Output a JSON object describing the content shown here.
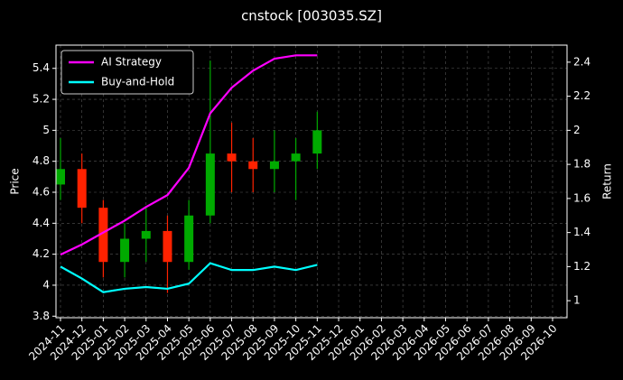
{
  "chart_data": {
    "type": "candlestick",
    "title": "cnstock [003035.SZ]",
    "ylabel": "Price",
    "y2label": "Return",
    "x": [
      "2024-11",
      "2024-12",
      "2025-01",
      "2025-02",
      "2025-03",
      "2025-04",
      "2025-05",
      "2025-06",
      "2025-07",
      "2025-08",
      "2025-09",
      "2025-10",
      "2025-11"
    ],
    "open": [
      4.65,
      4.75,
      4.5,
      4.15,
      4.3,
      4.35,
      4.15,
      4.45,
      4.85,
      4.8,
      4.75,
      4.8,
      4.85
    ],
    "high": [
      4.95,
      4.85,
      4.55,
      4.4,
      4.5,
      4.45,
      4.55,
      5.45,
      5.05,
      4.95,
      5.0,
      4.95,
      5.12
    ],
    "low": [
      4.55,
      4.4,
      4.05,
      4.05,
      4.15,
      3.95,
      4.1,
      4.4,
      4.6,
      4.6,
      4.6,
      4.55,
      4.75
    ],
    "close": [
      4.75,
      4.5,
      4.15,
      4.3,
      4.35,
      4.15,
      4.45,
      4.85,
      4.8,
      4.75,
      4.8,
      4.85,
      5.0
    ],
    "up_color": "#00aa00",
    "down_color": "#ff2200",
    "series": [
      {
        "name": "AI Strategy",
        "color": "#ff00ff",
        "axis": "y2",
        "values": [
          1.27,
          1.33,
          1.4,
          1.47,
          1.55,
          1.62,
          1.78,
          2.1,
          2.25,
          2.35,
          2.42,
          2.44,
          2.44
        ]
      },
      {
        "name": "Buy-and-Hold",
        "color": "#00ffff",
        "axis": "y2",
        "values": [
          1.2,
          1.13,
          1.05,
          1.07,
          1.08,
          1.07,
          1.1,
          1.22,
          1.18,
          1.18,
          1.2,
          1.18,
          1.21
        ]
      }
    ],
    "xlim": [
      "2024-11",
      "2026-10"
    ],
    "xticks": [
      "2024-11",
      "2024-12",
      "2025-01",
      "2025-02",
      "2025-03",
      "2025-04",
      "2025-05",
      "2025-06",
      "2025-07",
      "2025-08",
      "2025-09",
      "2025-10",
      "2025-11",
      "2025-12",
      "2026-01",
      "2026-02",
      "2026-03",
      "2026-04",
      "2026-05",
      "2026-06",
      "2026-07",
      "2026-08",
      "2026-09",
      "2026-10"
    ],
    "ylim": [
      3.79,
      5.55
    ],
    "yticks": [
      3.8,
      4.0,
      4.2,
      4.4,
      4.6,
      4.8,
      5.0,
      5.2,
      5.4
    ],
    "y2lim": [
      0.9,
      2.5
    ],
    "y2ticks": [
      1.0,
      1.2,
      1.4,
      1.6,
      1.8,
      2.0,
      2.2,
      2.4
    ],
    "grid": true,
    "legend": "upper left"
  }
}
